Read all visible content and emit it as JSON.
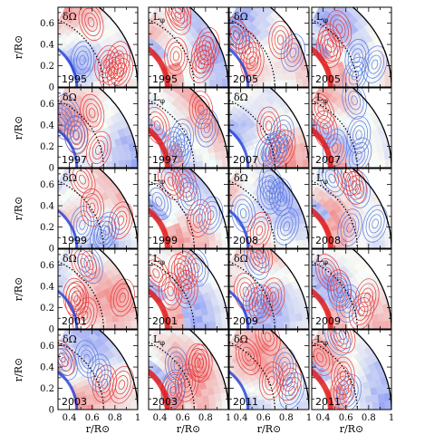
{
  "chart_data": {
    "type": "contour-grid",
    "rows": 5,
    "cols": 4,
    "column_quantities": [
      "δΩ",
      "Lφ",
      "δΩ",
      "Lφ"
    ],
    "years": [
      [
        "1995",
        "1995",
        "2005",
        "2005"
      ],
      [
        "1997",
        "1997",
        "2007",
        "2007"
      ],
      [
        "1999",
        "1999",
        "2008",
        "2008"
      ],
      [
        "2001",
        "2001",
        "2009",
        "2009"
      ],
      [
        "2003",
        "2003",
        "2011",
        "2011"
      ]
    ],
    "xlabel": "r/R⊙",
    "ylabel": "r/R⊙",
    "xlim": [
      0.3,
      1.0
    ],
    "ylim": [
      0,
      0.75
    ],
    "xticks": [
      "0.4",
      "0.6",
      "0.8",
      "1"
    ],
    "yticks": [
      "0",
      "0.2",
      "0.4",
      "0.6"
    ],
    "inner_radius": 0.45,
    "tachocline_radius": 0.7,
    "colors": {
      "positive": "#e83a3a",
      "negative": "#5a7ae0",
      "strong_positive": "#e01010",
      "strong_negative": "#1f3fd8"
    }
  }
}
